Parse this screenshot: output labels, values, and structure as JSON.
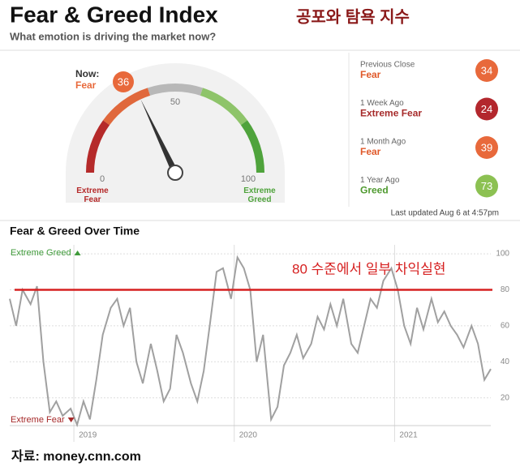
{
  "header": {
    "title": "Fear & Greed Index",
    "subtitle": "What emotion is driving the market now?",
    "korean_title": "공포와 탐욕 지수"
  },
  "history": [
    {
      "label": "Previous Close",
      "rating": "Fear",
      "value": 34,
      "color": "#e8693b",
      "text_color": "#e0592a"
    },
    {
      "label": "1 Week Ago",
      "rating": "Extreme Fear",
      "value": 24,
      "color": "#b3272d",
      "text_color": "#a62a2a"
    },
    {
      "label": "1 Month Ago",
      "rating": "Fear",
      "value": 39,
      "color": "#e8693b",
      "text_color": "#e0592a"
    },
    {
      "label": "1 Year Ago",
      "rating": "Greed",
      "value": 73,
      "color": "#8cc152",
      "text_color": "#4f9a2f"
    }
  ],
  "last_updated": "Last updated Aug 6 at 4:57pm",
  "source": "자료: money.cnn.com",
  "chart_data": [
    {
      "type": "gauge",
      "label": "Now:",
      "rating": "Fear",
      "value": 36,
      "color": "#e8693b",
      "lim": [
        0,
        100
      ],
      "ticks": [
        0,
        50,
        100
      ],
      "zone_labels": [
        "Extreme Fear",
        "Extreme Greed"
      ]
    },
    {
      "type": "line",
      "title": "Fear & Greed Over Time",
      "color": "#a0a0a0",
      "x": [
        2018.6,
        2018.64,
        2018.68,
        2018.73,
        2018.77,
        2018.81,
        2018.85,
        2018.89,
        2018.93,
        2018.98,
        2019.02,
        2019.06,
        2019.1,
        2019.14,
        2019.18,
        2019.23,
        2019.27,
        2019.31,
        2019.35,
        2019.39,
        2019.43,
        2019.48,
        2019.52,
        2019.56,
        2019.6,
        2019.64,
        2019.68,
        2019.73,
        2019.77,
        2019.81,
        2019.85,
        2019.89,
        2019.93,
        2019.98,
        2020.02,
        2020.06,
        2020.1,
        2020.14,
        2020.18,
        2020.23,
        2020.27,
        2020.31,
        2020.35,
        2020.39,
        2020.43,
        2020.48,
        2020.52,
        2020.56,
        2020.6,
        2020.64,
        2020.68,
        2020.73,
        2020.77,
        2020.81,
        2020.85,
        2020.89,
        2020.93,
        2020.98,
        2021.02,
        2021.06,
        2021.1,
        2021.14,
        2021.18,
        2021.23,
        2021.27,
        2021.31,
        2021.35,
        2021.39,
        2021.43,
        2021.48,
        2021.52,
        2021.56,
        2021.6
      ],
      "values": [
        75,
        60,
        80,
        72,
        82,
        40,
        12,
        18,
        10,
        14,
        5,
        18,
        8,
        30,
        55,
        70,
        75,
        60,
        70,
        40,
        28,
        50,
        35,
        18,
        25,
        55,
        45,
        28,
        18,
        35,
        62,
        90,
        92,
        75,
        98,
        92,
        80,
        40,
        55,
        8,
        15,
        38,
        45,
        55,
        42,
        50,
        65,
        58,
        72,
        60,
        75,
        50,
        45,
        60,
        75,
        70,
        85,
        92,
        80,
        60,
        50,
        70,
        58,
        75,
        62,
        68,
        60,
        55,
        48,
        60,
        50,
        30,
        36
      ],
      "xlim": [
        2018.6,
        2021.6
      ],
      "xticks": [
        2019,
        2020,
        2021
      ],
      "ylim": [
        5,
        105
      ],
      "yticks": [
        20,
        40,
        60,
        80,
        100
      ],
      "grid": true,
      "top_label": "Extreme Greed",
      "bottom_label": "Extreme Fear",
      "reference_line": 80,
      "reference_color": "#d62020",
      "annotation": "80 수준에서 일부 차익실현"
    }
  ]
}
